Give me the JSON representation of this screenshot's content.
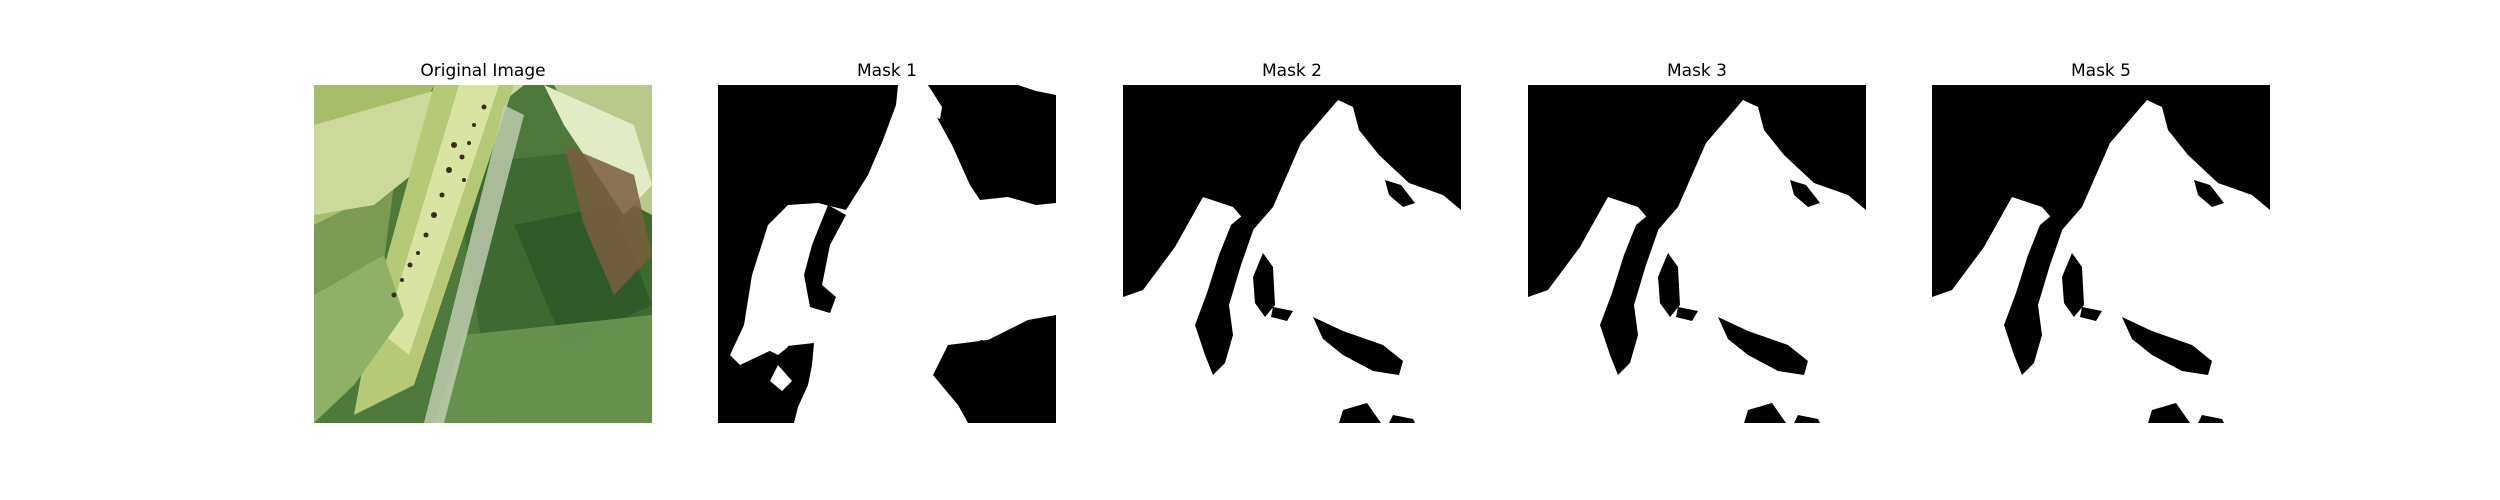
{
  "figure": {
    "panels": [
      {
        "title": "Original Image"
      },
      {
        "title": "Mask 1"
      },
      {
        "title": "Mask 2"
      },
      {
        "title": "Mask 3"
      },
      {
        "title": "Mask 5"
      }
    ]
  },
  "colors": {
    "background": "#ffffff",
    "mask_foreground": "#ffffff",
    "mask_background": "#000000",
    "leaf_dark_green": "#3f6b33",
    "leaf_mid_green": "#6f9a4c",
    "stem_light_green": "#c9d88f",
    "aphid_dark": "#3a2a1c"
  }
}
